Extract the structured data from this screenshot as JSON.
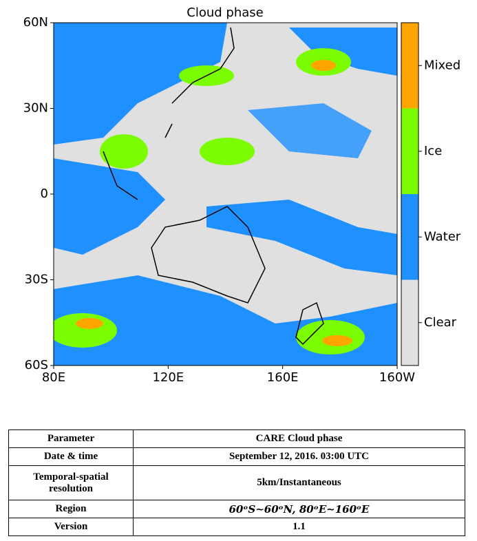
{
  "map": {
    "title": "Cloud phase",
    "lat_range": [
      -60,
      60
    ],
    "lon_range": [
      80,
      200
    ],
    "lat_ticks": [
      {
        "value": 60,
        "label": "60N"
      },
      {
        "value": 30,
        "label": "30N"
      },
      {
        "value": 0,
        "label": "0"
      },
      {
        "value": -30,
        "label": "30S"
      },
      {
        "value": -60,
        "label": "60S"
      }
    ],
    "lon_ticks": [
      {
        "value": 80,
        "label": "80E"
      },
      {
        "value": 120,
        "label": "120E"
      },
      {
        "value": 160,
        "label": "160E"
      },
      {
        "value": 200,
        "label": "160W"
      }
    ],
    "classes": [
      {
        "name": "Clear",
        "color": "#e0e0e0"
      },
      {
        "name": "Water",
        "color": "#1e90ff"
      },
      {
        "name": "Ice",
        "color": "#7cfc00"
      },
      {
        "name": "Mixed",
        "color": "#ffa500"
      }
    ]
  },
  "table": {
    "rows": [
      [
        "Parameter",
        "CARE Cloud phase"
      ],
      [
        "Date & time",
        "September 12, 2016. 03:00 UTC"
      ],
      [
        "Temporal-spatial resolution",
        "5km/Instantaneous"
      ],
      [
        "Region",
        "60ᵒS~60ᵒN, 80ᵒE~160ᵒE"
      ],
      [
        "Version",
        "1.1"
      ]
    ]
  }
}
